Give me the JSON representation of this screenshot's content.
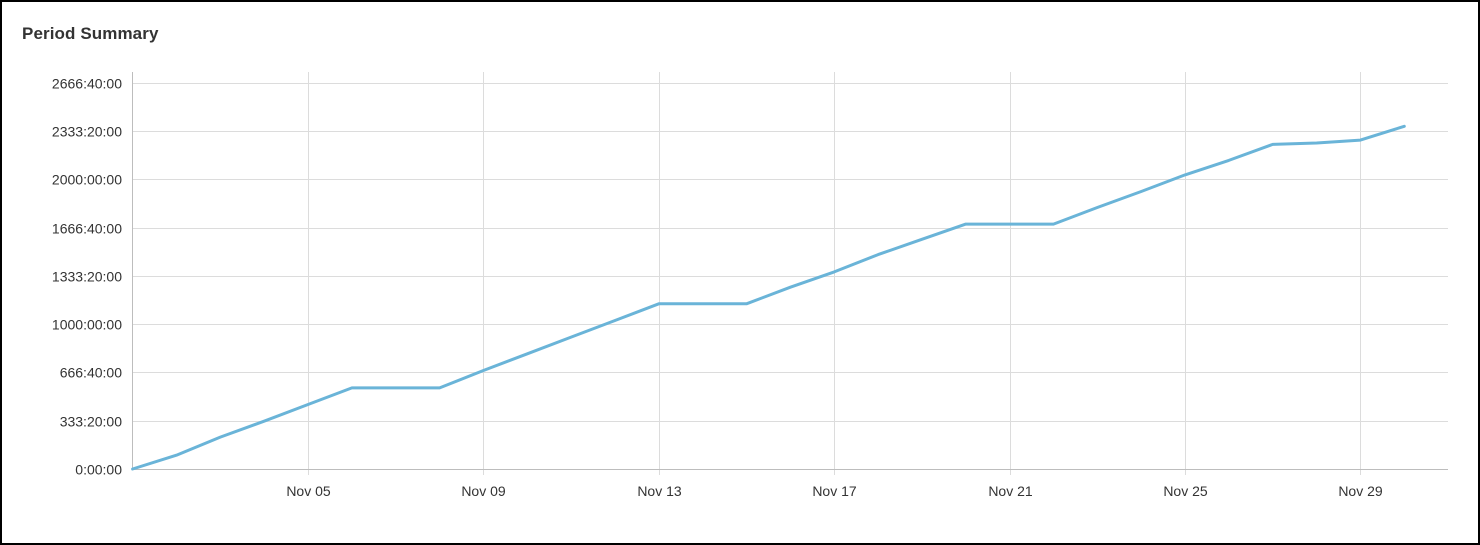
{
  "panel": {
    "title": "Period Summary"
  },
  "chart_data": {
    "type": "line",
    "title": "",
    "xlabel": "",
    "ylabel": "",
    "x_axis": {
      "kind": "date",
      "range": [
        "Nov 02",
        "Nov 31"
      ],
      "tick_labels": [
        "Nov 05",
        "Nov 09",
        "Nov 13",
        "Nov 17",
        "Nov 21",
        "Nov 25",
        "Nov 29"
      ],
      "tick_dates": [
        "Nov 05",
        "Nov 09",
        "Nov 13",
        "Nov 17",
        "Nov 21",
        "Nov 25",
        "Nov 29"
      ]
    },
    "y_axis": {
      "unit": "hours",
      "range": [
        0,
        2740
      ],
      "tick_labels": [
        "0:00:00",
        "333:20:00",
        "666:40:00",
        "1000:00:00",
        "1333:20:00",
        "1666:40:00",
        "2000:00:00",
        "2333:20:00",
        "2666:40:00"
      ],
      "tick_values": [
        0,
        333.33,
        666.67,
        1000,
        1333.33,
        1666.67,
        2000,
        2333.33,
        2666.67
      ]
    },
    "grid": true,
    "legend": "none",
    "series": [
      {
        "color": "#6ab4d8",
        "x": [
          "Nov 01",
          "Nov 02",
          "Nov 03",
          "Nov 04",
          "Nov 05",
          "Nov 06",
          "Nov 07",
          "Nov 08",
          "Nov 09",
          "Nov 10",
          "Nov 11",
          "Nov 12",
          "Nov 13",
          "Nov 14",
          "Nov 15",
          "Nov 16",
          "Nov 17",
          "Nov 18",
          "Nov 19",
          "Nov 20",
          "Nov 21",
          "Nov 22",
          "Nov 23",
          "Nov 24",
          "Nov 25",
          "Nov 26",
          "Nov 27",
          "Nov 28",
          "Nov 29",
          "Nov 30"
        ],
        "y": [
          0,
          95,
          220,
          330,
          445,
          560,
          560,
          560,
          680,
          795,
          910,
          1025,
          1140,
          1140,
          1140,
          1255,
          1360,
          1480,
          1585,
          1690,
          1690,
          1690,
          1805,
          1915,
          2030,
          2130,
          2240,
          2250,
          2270,
          2365
        ]
      }
    ]
  }
}
